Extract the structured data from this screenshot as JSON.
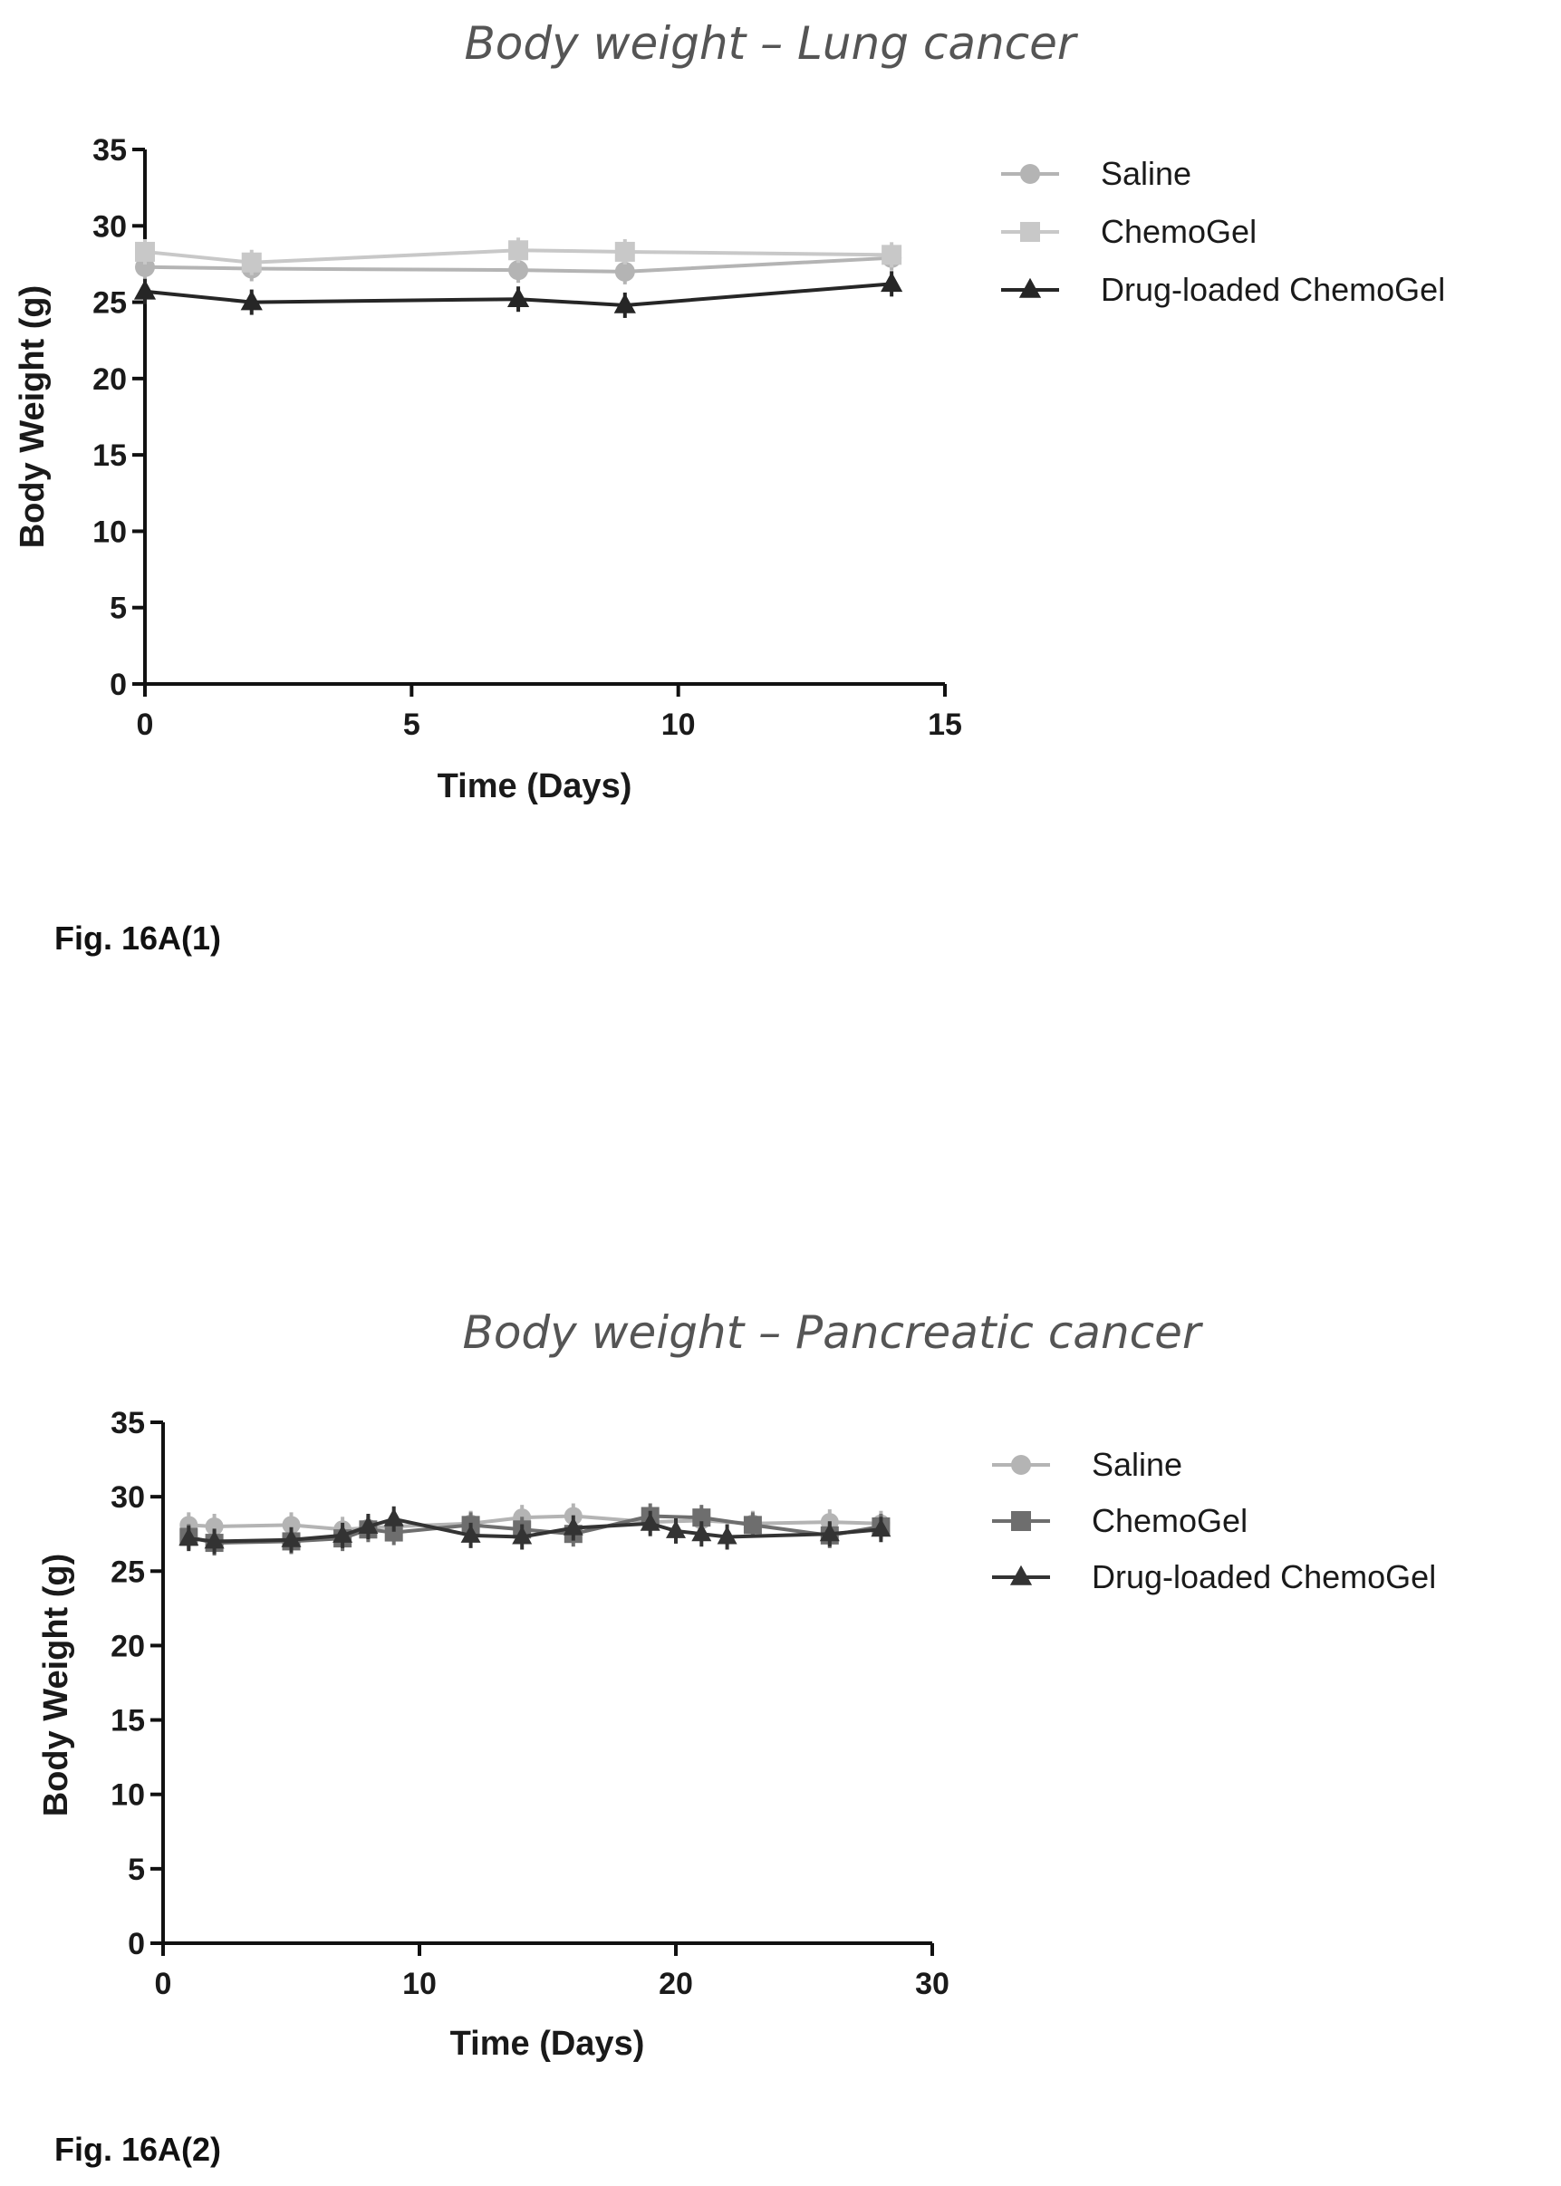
{
  "figure_labels": [
    "Fig. 16A(1)",
    "Fig. 16A(2)"
  ],
  "chart_data": [
    {
      "type": "line",
      "title": "Body weight – Lung cancer",
      "xlabel": "Time (Days)",
      "ylabel": "Body Weight (g)",
      "xlim": [
        0,
        15
      ],
      "ylim": [
        0,
        35
      ],
      "xticks": [
        0,
        5,
        10,
        15
      ],
      "yticks": [
        0,
        5,
        10,
        15,
        20,
        25,
        30,
        35
      ],
      "grid": false,
      "legend_position": "right",
      "series": [
        {
          "name": "Saline",
          "marker": "circle",
          "color": "#b4b4b4",
          "x": [
            0,
            2,
            7,
            9,
            14
          ],
          "y": [
            27.3,
            27.2,
            27.1,
            27.0,
            27.9
          ]
        },
        {
          "name": "ChemoGel",
          "marker": "square",
          "color": "#c8c8c8",
          "x": [
            0,
            2,
            7,
            9,
            14
          ],
          "y": [
            28.3,
            27.6,
            28.4,
            28.3,
            28.1
          ]
        },
        {
          "name": "Drug-loaded ChemoGel",
          "marker": "triangle",
          "color": "#262626",
          "x": [
            0,
            2,
            7,
            9,
            14
          ],
          "y": [
            25.7,
            25.0,
            25.2,
            24.8,
            26.2
          ]
        }
      ]
    },
    {
      "type": "line",
      "title": "Body weight – Pancreatic cancer",
      "xlabel": "Time (Days)",
      "ylabel": "Body Weight (g)",
      "xlim": [
        0,
        30
      ],
      "ylim": [
        0,
        35
      ],
      "xticks": [
        0,
        10,
        20,
        30
      ],
      "yticks": [
        0,
        5,
        10,
        15,
        20,
        25,
        30,
        35
      ],
      "grid": false,
      "legend_position": "right",
      "series": [
        {
          "name": "Saline",
          "marker": "circle",
          "color": "#b4b4b4",
          "x": [
            1,
            2,
            5,
            7,
            8,
            9,
            12,
            14,
            16,
            19,
            21,
            23,
            26,
            28
          ],
          "y": [
            28.1,
            28.0,
            28.1,
            27.8,
            27.9,
            28.0,
            28.2,
            28.6,
            28.7,
            28.3,
            28.4,
            28.2,
            28.3,
            28.2
          ]
        },
        {
          "name": "ChemoGel",
          "marker": "square",
          "color": "#6e6e6e",
          "x": [
            1,
            2,
            5,
            7,
            8,
            9,
            12,
            14,
            16,
            19,
            21,
            23,
            26,
            28
          ],
          "y": [
            27.3,
            26.9,
            27.0,
            27.2,
            27.8,
            27.6,
            28.1,
            27.8,
            27.5,
            28.7,
            28.6,
            28.1,
            27.4,
            28.0
          ]
        },
        {
          "name": "Drug-loaded ChemoGel",
          "marker": "triangle",
          "color": "#333333",
          "x": [
            1,
            2,
            5,
            7,
            8,
            9,
            12,
            14,
            16,
            19,
            20,
            21,
            22,
            26,
            28
          ],
          "y": [
            27.2,
            27.0,
            27.1,
            27.4,
            28.0,
            28.5,
            27.4,
            27.3,
            27.9,
            28.2,
            27.7,
            27.5,
            27.3,
            27.5,
            27.8
          ]
        }
      ]
    }
  ]
}
